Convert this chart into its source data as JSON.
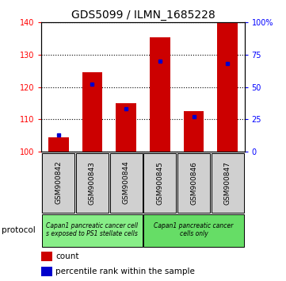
{
  "title": "GDS5099 / ILMN_1685228",
  "samples": [
    "GSM900842",
    "GSM900843",
    "GSM900844",
    "GSM900845",
    "GSM900846",
    "GSM900847"
  ],
  "counts": [
    104.5,
    124.5,
    115.0,
    135.5,
    112.5,
    140.0
  ],
  "percentile_ranks": [
    13,
    52,
    33,
    70,
    27,
    68
  ],
  "ylim": [
    100,
    140
  ],
  "yticks_left": [
    100,
    110,
    120,
    130,
    140
  ],
  "yticks_right": [
    0,
    25,
    50,
    75,
    100
  ],
  "bar_color": "#cc0000",
  "dot_color": "#0000cc",
  "group1_label": "Capan1 pancreatic cancer cell\ns exposed to PS1 stellate cells",
  "group2_label": "Capan1 pancreatic cancer\ncells only",
  "group1_indices": [
    0,
    1,
    2
  ],
  "group2_indices": [
    3,
    4,
    5
  ],
  "group1_color": "#88ee88",
  "group2_color": "#66dd66",
  "protocol_label": "protocol",
  "legend_count_label": "count",
  "legend_pct_label": "percentile rank within the sample",
  "sample_box_color": "#cccccc",
  "title_fontsize": 10
}
